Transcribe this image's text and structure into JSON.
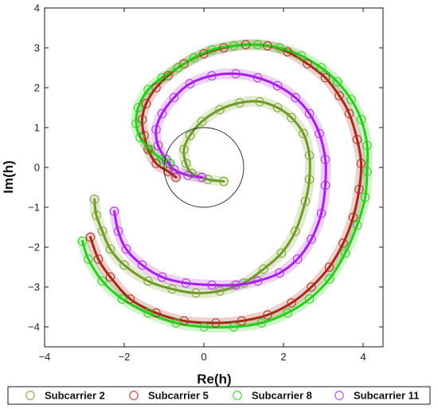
{
  "chart_data": {
    "type": "scatter",
    "xlabel": "Re(h)",
    "ylabel": "Im(h)",
    "xlim": [
      -4,
      4.5
    ],
    "ylim": [
      -4.5,
      4
    ],
    "xticks": [
      "−4",
      "−2",
      "0",
      "2",
      "4"
    ],
    "yticks": [
      "4",
      "3",
      "2",
      "1",
      "0",
      "−1",
      "−2",
      "−3",
      "−4"
    ],
    "grid": false,
    "legend_position": "bottom",
    "reference_circle": {
      "center": [
        0,
        0
      ],
      "radius": 1
    },
    "series": [
      {
        "name": "Subcarrier 2",
        "color": "#7aa22c",
        "line_color": "#6f9a26",
        "points": [
          [
            0.5,
            -0.35
          ],
          [
            0.1,
            -0.3
          ],
          [
            -0.3,
            -0.15
          ],
          [
            -0.45,
            0.1
          ],
          [
            -0.5,
            0.45
          ],
          [
            -0.35,
            0.8
          ],
          [
            -0.05,
            1.15
          ],
          [
            0.4,
            1.45
          ],
          [
            0.9,
            1.62
          ],
          [
            1.4,
            1.65
          ],
          [
            1.85,
            1.5
          ],
          [
            2.2,
            1.25
          ],
          [
            2.5,
            0.85
          ],
          [
            2.65,
            0.3
          ],
          [
            2.65,
            -0.3
          ],
          [
            2.55,
            -0.85
          ],
          [
            2.3,
            -1.6
          ],
          [
            1.95,
            -2.15
          ],
          [
            1.5,
            -2.55
          ],
          [
            1.0,
            -2.9
          ],
          [
            0.4,
            -3.1
          ],
          [
            -0.2,
            -3.15
          ],
          [
            -0.8,
            -3.05
          ],
          [
            -1.4,
            -2.85
          ],
          [
            -2.0,
            -2.45
          ],
          [
            -2.35,
            -2.05
          ],
          [
            -2.55,
            -1.6
          ],
          [
            -2.7,
            -1.2
          ],
          [
            -2.75,
            -0.8
          ]
        ]
      },
      {
        "name": "Subcarrier 5",
        "color": "#b22a1a",
        "line_color": "#a52a1a",
        "points": [
          [
            -0.7,
            -0.25
          ],
          [
            -0.9,
            -0.1
          ],
          [
            -1.2,
            0.1
          ],
          [
            -1.4,
            0.45
          ],
          [
            -1.5,
            0.8
          ],
          [
            -1.55,
            1.2
          ],
          [
            -1.45,
            1.6
          ],
          [
            -1.2,
            2.0
          ],
          [
            -0.9,
            2.3
          ],
          [
            -0.5,
            2.6
          ],
          [
            0.0,
            2.85
          ],
          [
            0.5,
            3.0
          ],
          [
            1.05,
            3.08
          ],
          [
            1.6,
            3.05
          ],
          [
            2.1,
            2.9
          ],
          [
            2.6,
            2.6
          ],
          [
            3.05,
            2.25
          ],
          [
            3.4,
            1.8
          ],
          [
            3.65,
            1.35
          ],
          [
            3.85,
            0.7
          ],
          [
            3.95,
            0.1
          ],
          [
            3.9,
            -0.55
          ],
          [
            3.75,
            -1.25
          ],
          [
            3.5,
            -1.9
          ],
          [
            3.15,
            -2.5
          ],
          [
            2.7,
            -3.0
          ],
          [
            2.2,
            -3.4
          ],
          [
            1.6,
            -3.7
          ],
          [
            0.95,
            -3.85
          ],
          [
            0.3,
            -3.9
          ],
          [
            -0.5,
            -3.85
          ],
          [
            -1.2,
            -3.65
          ],
          [
            -1.85,
            -3.3
          ],
          [
            -2.35,
            -2.75
          ],
          [
            -2.65,
            -2.3
          ],
          [
            -2.85,
            -1.75
          ]
        ]
      },
      {
        "name": "Subcarrier 8",
        "color": "#2ecc1a",
        "line_color": "#25d018",
        "points": [
          [
            -0.85,
            0.1
          ],
          [
            -1.05,
            0.2
          ],
          [
            -1.35,
            0.45
          ],
          [
            -1.6,
            0.75
          ],
          [
            -1.7,
            1.1
          ],
          [
            -1.65,
            1.5
          ],
          [
            -1.4,
            1.95
          ],
          [
            -1.05,
            2.25
          ],
          [
            -0.65,
            2.5
          ],
          [
            -0.25,
            2.75
          ],
          [
            0.2,
            2.95
          ],
          [
            0.75,
            3.05
          ],
          [
            1.35,
            3.08
          ],
          [
            1.9,
            3.0
          ],
          [
            2.45,
            2.8
          ],
          [
            2.95,
            2.5
          ],
          [
            3.35,
            2.15
          ],
          [
            3.7,
            1.7
          ],
          [
            3.95,
            1.2
          ],
          [
            4.1,
            0.55
          ],
          [
            4.1,
            -0.1
          ],
          [
            4.05,
            -0.75
          ],
          [
            3.85,
            -1.45
          ],
          [
            3.55,
            -2.15
          ],
          [
            3.15,
            -2.8
          ],
          [
            2.65,
            -3.3
          ],
          [
            2.1,
            -3.65
          ],
          [
            1.45,
            -3.9
          ],
          [
            0.75,
            -4.0
          ],
          [
            0.0,
            -4.0
          ],
          [
            -0.7,
            -3.9
          ],
          [
            -1.4,
            -3.65
          ],
          [
            -2.05,
            -3.3
          ],
          [
            -2.55,
            -2.85
          ],
          [
            -2.9,
            -2.3
          ],
          [
            -3.05,
            -1.85
          ]
        ]
      },
      {
        "name": "Subcarrier 11",
        "color": "#b02ee0",
        "line_color": "#a81df2",
        "points": [
          [
            -0.05,
            -0.25
          ],
          [
            -0.4,
            -0.2
          ],
          [
            -0.75,
            -0.05
          ],
          [
            -0.95,
            0.2
          ],
          [
            -1.15,
            0.55
          ],
          [
            -1.2,
            0.95
          ],
          [
            -1.05,
            1.35
          ],
          [
            -0.75,
            1.75
          ],
          [
            -0.35,
            2.1
          ],
          [
            0.2,
            2.3
          ],
          [
            0.8,
            2.35
          ],
          [
            1.35,
            2.25
          ],
          [
            1.85,
            2.05
          ],
          [
            2.3,
            1.75
          ],
          [
            2.65,
            1.35
          ],
          [
            2.9,
            0.85
          ],
          [
            3.05,
            0.2
          ],
          [
            3.05,
            -0.45
          ],
          [
            2.95,
            -1.15
          ],
          [
            2.7,
            -1.8
          ],
          [
            2.35,
            -2.3
          ],
          [
            1.9,
            -2.65
          ],
          [
            1.35,
            -2.85
          ],
          [
            0.8,
            -2.95
          ],
          [
            0.2,
            -2.95
          ],
          [
            -0.45,
            -2.9
          ],
          [
            -1.05,
            -2.75
          ],
          [
            -1.55,
            -2.45
          ],
          [
            -1.95,
            -2.05
          ],
          [
            -2.15,
            -1.6
          ],
          [
            -2.25,
            -1.1
          ]
        ]
      }
    ]
  }
}
